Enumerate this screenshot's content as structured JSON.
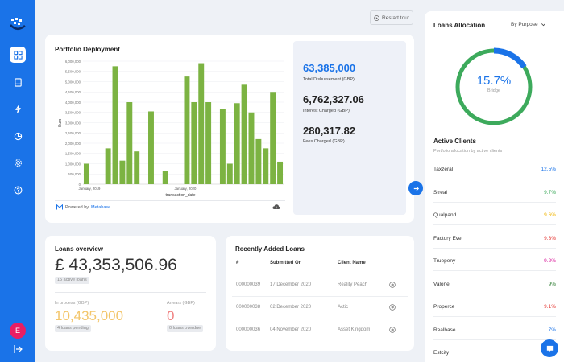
{
  "sidebar": {
    "items": [
      {
        "name": "dashboard-icon"
      },
      {
        "name": "book-icon"
      },
      {
        "name": "lightning-icon"
      },
      {
        "name": "pie-chart-icon"
      },
      {
        "name": "gear-icon"
      },
      {
        "name": "help-icon"
      }
    ],
    "avatar_initial": "E"
  },
  "header": {
    "restart_label": "Restart tour"
  },
  "portfolio": {
    "title": "Portfolio Deployment",
    "powered_prefix": "Powered by",
    "powered_link": "Metabase",
    "stats": [
      {
        "value": "63,385,000",
        "label": "Total Disbursement (GBP)"
      },
      {
        "value": "6,762,327.06",
        "label": "Interest Charged (GBP)"
      },
      {
        "value": "280,317.82",
        "label": "Fees Charged (GBP)"
      }
    ]
  },
  "chart_data": {
    "type": "bar",
    "title": "Portfolio Deployment",
    "xlabel": "transaction_date",
    "ylabel": "Sum",
    "ylim": [
      0,
      6000000
    ],
    "yticks": [
      "0",
      "500,000",
      "1,000,000",
      "1,500,000",
      "2,000,000",
      "2,500,000",
      "3,000,000",
      "3,500,000",
      "4,000,000",
      "4,500,000",
      "5,000,000",
      "5,500,000",
      "6,000,000"
    ],
    "xtick_labels": [
      "January, 2019",
      "January, 2020"
    ],
    "color": "#7cb342",
    "values": [
      1000000,
      0,
      0,
      1750000,
      5750000,
      1150000,
      4000000,
      1600000,
      0,
      3550000,
      0,
      650000,
      0,
      0,
      5250000,
      4000000,
      5900000,
      4000000,
      0,
      3650000,
      1000000,
      3950000,
      4850000,
      3500000,
      2200000,
      1750000,
      4500000,
      1100000
    ]
  },
  "overview": {
    "title": "Loans overview",
    "total": "£ 43,353,506.96",
    "active_tag": "15 active loans",
    "in_process_label": "In process (GBP)",
    "in_process_value": "10,435,000",
    "pending_tag": "4 loans pending",
    "arrears_label": "Arrears (GBP)",
    "arrears_value": "0",
    "overdue_tag": "0 loans overdue"
  },
  "recent": {
    "title": "Recently Added Loans",
    "headers": [
      "#",
      "Submitted On",
      "Client Name"
    ],
    "rows": [
      {
        "id": "000000039",
        "date": "17 December 2020",
        "client": "Reality Peach"
      },
      {
        "id": "000000038",
        "date": "02 December 2020",
        "client": "Actic"
      },
      {
        "id": "000000036",
        "date": "04 November 2020",
        "client": "Asset Kingdom"
      }
    ]
  },
  "allocation": {
    "title": "Loans Allocation",
    "filter": "By Purpose",
    "percent_value": 15.7,
    "percent_label": "15.7%",
    "segment_label": "Bridge",
    "ring_color": "#3daa5c",
    "highlight_color": "#1a73e8"
  },
  "clients": {
    "title": "Active Clients",
    "subtitle": "Portfolio allocation by active clients",
    "items": [
      {
        "name": "Taxzeral",
        "pct": "12.5%",
        "color": "#1a73e8"
      },
      {
        "name": "Streal",
        "pct": "9.7%",
        "color": "#3daa5c"
      },
      {
        "name": "Qualpand",
        "pct": "9.6%",
        "color": "#f0b400"
      },
      {
        "name": "Factory Eve",
        "pct": "9.3%",
        "color": "#e53935"
      },
      {
        "name": "Truepeny",
        "pct": "9.2%",
        "color": "#d81b9a"
      },
      {
        "name": "Valone",
        "pct": "9%",
        "color": "#2e7d32"
      },
      {
        "name": "Properce",
        "pct": "9.1%",
        "color": "#e53935"
      },
      {
        "name": "Realbase",
        "pct": "7%",
        "color": "#1a73e8"
      },
      {
        "name": "Estcity",
        "pct": "",
        "color": "#999999"
      }
    ]
  }
}
